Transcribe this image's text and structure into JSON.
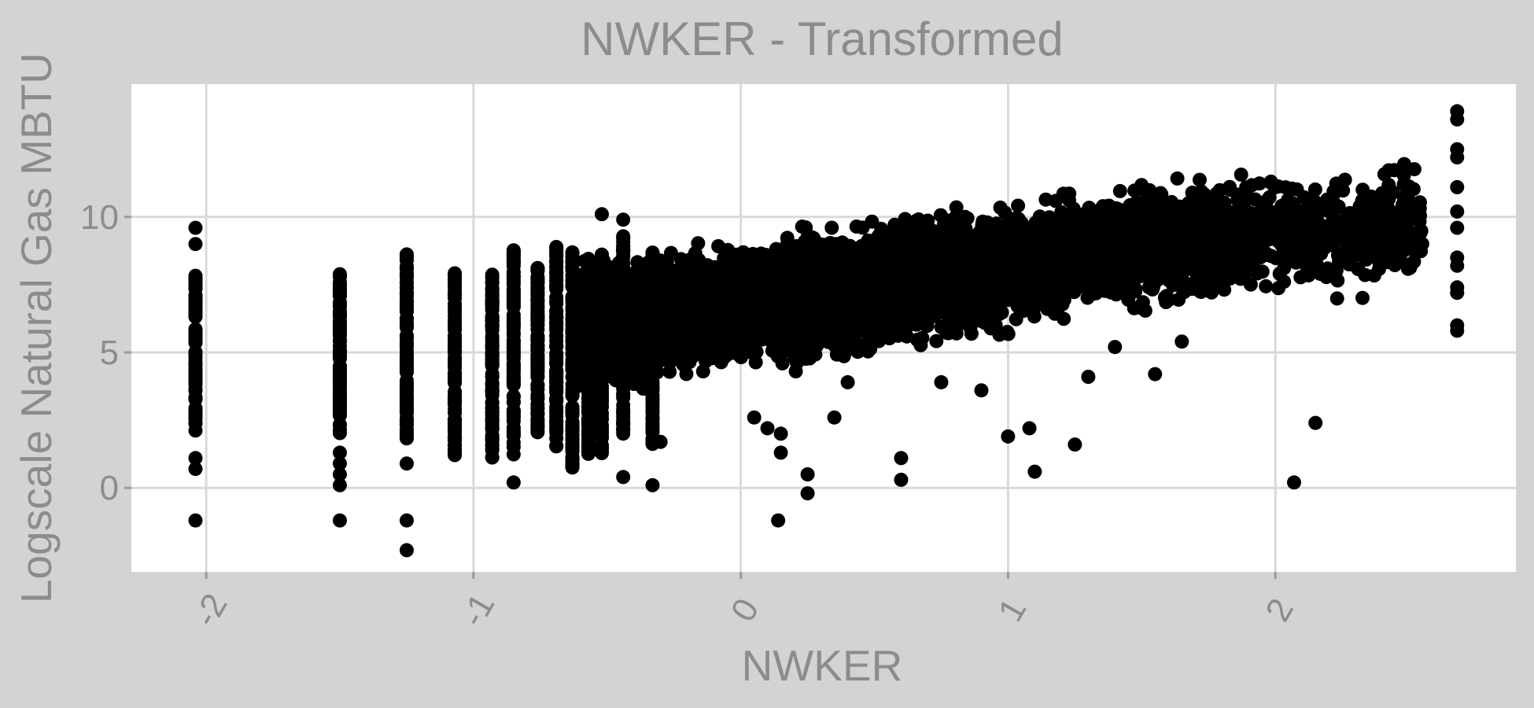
{
  "chart_data": {
    "type": "scatter",
    "title": "NWKER - Transformed",
    "xlabel": "NWKER",
    "ylabel": "Logscale Natural Gas MBTU",
    "xlim": [
      -2.28,
      2.9
    ],
    "ylim": [
      -3.1,
      14.9
    ],
    "x_ticks": [
      -2,
      -1,
      0,
      1,
      2
    ],
    "x_tick_labels": [
      "-2",
      "-1",
      "0",
      "1",
      "2"
    ],
    "y_ticks": [
      0,
      5,
      10
    ],
    "y_tick_labels": [
      "0",
      "5",
      "10"
    ],
    "grid": true,
    "x_tick_label_rotation": "tilted",
    "point_color": "#000000",
    "panel_color": "#ffffff",
    "background_color": "#d3d3d3",
    "columns": [
      {
        "x": -2.04,
        "ymin": 2.1,
        "ymax": 7.9,
        "n": 90,
        "extra": [
          9.6,
          9.0,
          1.1,
          0.7,
          -1.2
        ]
      },
      {
        "x": -1.5,
        "ymin": 2.0,
        "ymax": 7.9,
        "n": 110,
        "extra": [
          1.3,
          0.9,
          0.5,
          0.1,
          -1.2
        ]
      },
      {
        "x": -1.25,
        "ymin": 1.8,
        "ymax": 8.7,
        "n": 110,
        "extra": [
          0.9,
          -1.2,
          -2.3
        ]
      },
      {
        "x": -1.07,
        "ymin": 1.2,
        "ymax": 8.0,
        "n": 110,
        "extra": []
      },
      {
        "x": -0.93,
        "ymin": 1.1,
        "ymax": 7.9,
        "n": 100,
        "extra": []
      },
      {
        "x": -0.85,
        "ymin": 1.2,
        "ymax": 8.8,
        "n": 110,
        "extra": [
          0.2
        ]
      },
      {
        "x": -0.76,
        "ymin": 2.0,
        "ymax": 8.2,
        "n": 100,
        "extra": []
      },
      {
        "x": -0.69,
        "ymin": 1.5,
        "ymax": 8.9,
        "n": 100,
        "extra": []
      },
      {
        "x": -0.63,
        "ymin": 0.6,
        "ymax": 8.7,
        "n": 100,
        "extra": [
          1.0
        ]
      },
      {
        "x": -0.57,
        "ymin": 1.2,
        "ymax": 8.5,
        "n": 90,
        "extra": []
      },
      {
        "x": -0.52,
        "ymin": 1.2,
        "ymax": 8.9,
        "n": 90,
        "extra": [
          10.1
        ]
      },
      {
        "x": -0.44,
        "ymin": 2.0,
        "ymax": 9.3,
        "n": 90,
        "extra": [
          9.9,
          0.4
        ]
      },
      {
        "x": -0.33,
        "ymin": 1.6,
        "ymax": 8.7,
        "n": 80,
        "extra": [
          0.1
        ]
      }
    ],
    "cloud": [
      {
        "x0": -0.62,
        "x1": 0.0,
        "ymin_a": 3.0,
        "ymin_b": 3.9,
        "ymax_a": 8.6,
        "ymax_b": 9.6,
        "n": 1300
      },
      {
        "x0": 0.0,
        "x1": 0.6,
        "ymin_a": 3.9,
        "ymin_b": 4.5,
        "ymax_a": 9.6,
        "ymax_b": 10.5,
        "n": 1300
      },
      {
        "x0": 0.6,
        "x1": 1.2,
        "ymin_a": 4.5,
        "ymin_b": 5.8,
        "ymax_a": 10.5,
        "ymax_b": 11.2,
        "n": 1100
      },
      {
        "x0": 1.2,
        "x1": 1.8,
        "ymin_a": 5.8,
        "ymin_b": 6.5,
        "ymax_a": 11.2,
        "ymax_b": 12.0,
        "n": 850
      },
      {
        "x0": 1.8,
        "x1": 2.55,
        "ymin_a": 6.5,
        "ymin_b": 7.0,
        "ymax_a": 12.0,
        "ymax_b": 12.3,
        "n": 500
      }
    ],
    "outliers": [
      [
        0.05,
        2.6
      ],
      [
        0.1,
        2.2
      ],
      [
        0.15,
        1.3
      ],
      [
        0.15,
        2.0
      ],
      [
        0.25,
        0.5
      ],
      [
        0.25,
        -0.2
      ],
      [
        0.14,
        -1.2
      ],
      [
        0.6,
        1.1
      ],
      [
        0.6,
        0.3
      ],
      [
        0.9,
        3.6
      ],
      [
        1.0,
        1.9
      ],
      [
        1.08,
        2.2
      ],
      [
        1.1,
        0.6
      ],
      [
        1.25,
        1.6
      ],
      [
        1.55,
        4.2
      ],
      [
        2.07,
        0.2
      ],
      [
        2.15,
        2.4
      ],
      [
        0.35,
        2.6
      ],
      [
        -0.3,
        1.7
      ],
      [
        0.4,
        3.9
      ],
      [
        0.75,
        3.9
      ],
      [
        1.3,
        4.1
      ],
      [
        1.4,
        5.2
      ],
      [
        1.65,
        5.4
      ]
    ],
    "right_column": {
      "x": 2.68,
      "values": [
        13.9,
        13.6,
        12.5,
        12.2,
        11.1,
        10.2,
        9.6,
        8.5,
        8.2,
        7.4,
        7.2,
        6.0,
        5.8
      ]
    }
  }
}
